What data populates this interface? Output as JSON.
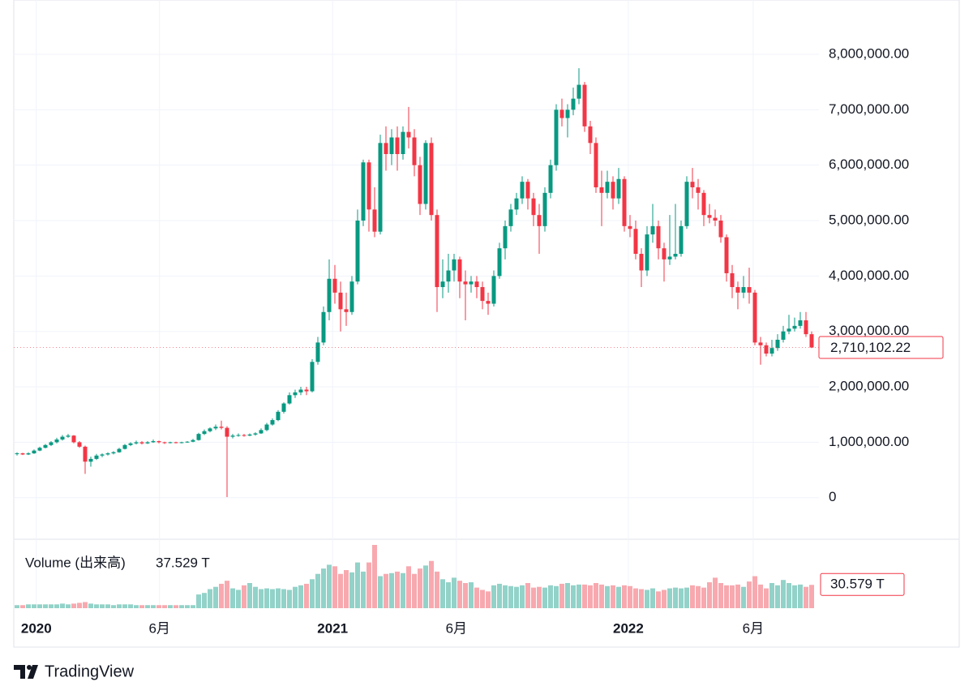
{
  "chart_data": {
    "type": "candlestick",
    "up_color": "#089981",
    "down_color": "#f23645",
    "volume_up_color": "#92d2c8",
    "volume_down_color": "#f7a9af",
    "ylim": [
      -750000,
      8980000
    ],
    "yticks": [
      0,
      {
        "value": 1000000,
        "label": "1,000,000.00"
      },
      {
        "value": 2000000,
        "label": "2,000,000.00"
      },
      {
        "value": 3000000,
        "label": "3,000,000.00"
      },
      {
        "value": 4000000,
        "label": "4,000,000.00"
      },
      {
        "value": 5000000,
        "label": "5,000,000.00"
      },
      {
        "value": 6000000,
        "label": "6,000,000.00"
      },
      {
        "value": 7000000,
        "label": "7,000,000.00"
      },
      {
        "value": 8000000,
        "label": "8,000,000.00"
      }
    ],
    "xticks": [
      {
        "value": 3.4,
        "label": "2020"
      },
      {
        "value": 25.1,
        "label": "6月"
      },
      {
        "value": 55.6,
        "label": "2021"
      },
      {
        "value": 77.4,
        "label": "6月"
      },
      {
        "value": 107.7,
        "label": "2022"
      },
      {
        "value": 129.7,
        "label": "6月"
      }
    ],
    "grid": true,
    "last_price": {
      "value": 2710102.22,
      "label": "2,710,102.22"
    },
    "ohlc": [
      [
        790000,
        820000,
        760000,
        800000
      ],
      [
        800000,
        810000,
        770000,
        780000
      ],
      [
        780000,
        820000,
        770000,
        800000
      ],
      [
        800000,
        870000,
        790000,
        850000
      ],
      [
        850000,
        920000,
        840000,
        900000
      ],
      [
        900000,
        970000,
        890000,
        950000
      ],
      [
        950000,
        1020000,
        930000,
        1000000
      ],
      [
        1000000,
        1080000,
        980000,
        1050000
      ],
      [
        1050000,
        1130000,
        1030000,
        1100000
      ],
      [
        1100000,
        1150000,
        1080000,
        1120000
      ],
      [
        1120000,
        1130000,
        980000,
        1000000
      ],
      [
        1000000,
        1020000,
        900000,
        920000
      ],
      [
        920000,
        940000,
        430000,
        650000
      ],
      [
        650000,
        740000,
        560000,
        700000
      ],
      [
        700000,
        790000,
        680000,
        760000
      ],
      [
        760000,
        800000,
        730000,
        780000
      ],
      [
        780000,
        820000,
        760000,
        800000
      ],
      [
        800000,
        840000,
        780000,
        820000
      ],
      [
        820000,
        900000,
        810000,
        880000
      ],
      [
        880000,
        970000,
        870000,
        950000
      ],
      [
        950000,
        1000000,
        930000,
        980000
      ],
      [
        980000,
        1030000,
        960000,
        1000000
      ],
      [
        1000000,
        1020000,
        960000,
        980000
      ],
      [
        980000,
        1020000,
        970000,
        1000000
      ],
      [
        1000000,
        1050000,
        990000,
        1020000
      ],
      [
        1020000,
        1030000,
        980000,
        1000000
      ],
      [
        1000000,
        1010000,
        970000,
        990000
      ],
      [
        990000,
        1010000,
        980000,
        1000000
      ],
      [
        1000000,
        1010000,
        980000,
        990000
      ],
      [
        990000,
        1010000,
        980000,
        1000000
      ],
      [
        1000000,
        1020000,
        990000,
        1010000
      ],
      [
        1010000,
        1060000,
        1000000,
        1040000
      ],
      [
        1040000,
        1170000,
        1030000,
        1150000
      ],
      [
        1150000,
        1230000,
        1130000,
        1200000
      ],
      [
        1200000,
        1270000,
        1180000,
        1250000
      ],
      [
        1250000,
        1320000,
        1220000,
        1280000
      ],
      [
        1280000,
        1390000,
        1230000,
        1260000
      ],
      [
        1260000,
        1290000,
        10000,
        1100000
      ],
      [
        1100000,
        1150000,
        1070000,
        1120000
      ],
      [
        1120000,
        1160000,
        1100000,
        1130000
      ],
      [
        1130000,
        1150000,
        1100000,
        1120000
      ],
      [
        1120000,
        1160000,
        1110000,
        1140000
      ],
      [
        1140000,
        1180000,
        1120000,
        1160000
      ],
      [
        1160000,
        1250000,
        1150000,
        1220000
      ],
      [
        1220000,
        1350000,
        1200000,
        1320000
      ],
      [
        1320000,
        1430000,
        1300000,
        1400000
      ],
      [
        1400000,
        1580000,
        1380000,
        1550000
      ],
      [
        1550000,
        1720000,
        1520000,
        1700000
      ],
      [
        1700000,
        1900000,
        1680000,
        1850000
      ],
      [
        1850000,
        1950000,
        1800000,
        1900000
      ],
      [
        1900000,
        2000000,
        1850000,
        1950000
      ],
      [
        1950000,
        2000000,
        1850000,
        1920000
      ],
      [
        1920000,
        2500000,
        1900000,
        2450000
      ],
      [
        2450000,
        2900000,
        2400000,
        2800000
      ],
      [
        2800000,
        3450000,
        2750000,
        3350000
      ],
      [
        3350000,
        4300000,
        3200000,
        3950000
      ],
      [
        3950000,
        4200000,
        3500000,
        3700000
      ],
      [
        3700000,
        3900000,
        3000000,
        3400000
      ],
      [
        3400000,
        3700000,
        3100000,
        3350000
      ],
      [
        3350000,
        4000000,
        3300000,
        3900000
      ],
      [
        3900000,
        5200000,
        3850000,
        5000000
      ],
      [
        5000000,
        6100000,
        4900000,
        6050000
      ],
      [
        6050000,
        6100000,
        4800000,
        5200000
      ],
      [
        5200000,
        5600000,
        4700000,
        4800000
      ],
      [
        4800000,
        6550000,
        4750000,
        6400000
      ],
      [
        6400000,
        6700000,
        5900000,
        6200000
      ],
      [
        6200000,
        6650000,
        6000000,
        6500000
      ],
      [
        6500000,
        6700000,
        5900000,
        6200000
      ],
      [
        6200000,
        6700000,
        6100000,
        6600000
      ],
      [
        6600000,
        7050000,
        6300000,
        6500000
      ],
      [
        6500000,
        6650000,
        5800000,
        6000000
      ],
      [
        6000000,
        6150000,
        5100000,
        5300000
      ],
      [
        5300000,
        6450000,
        5200000,
        6400000
      ],
      [
        6400000,
        6500000,
        5000000,
        5100000
      ],
      [
        5100000,
        5200000,
        3350000,
        3800000
      ],
      [
        3800000,
        4300000,
        3600000,
        3900000
      ],
      [
        3900000,
        4400000,
        3700000,
        4100000
      ],
      [
        4100000,
        4400000,
        3900000,
        4300000
      ],
      [
        4300000,
        4350000,
        3600000,
        3900000
      ],
      [
        3900000,
        4100000,
        3200000,
        3850000
      ],
      [
        3850000,
        4000000,
        3700000,
        3900000
      ],
      [
        3900000,
        4000000,
        3600000,
        3800000
      ],
      [
        3800000,
        3900000,
        3400000,
        3550000
      ],
      [
        3550000,
        3700000,
        3300000,
        3500000
      ],
      [
        3500000,
        4100000,
        3450000,
        4000000
      ],
      [
        4000000,
        4600000,
        3950000,
        4500000
      ],
      [
        4500000,
        5000000,
        4300000,
        4900000
      ],
      [
        4900000,
        5300000,
        4800000,
        5200000
      ],
      [
        5200000,
        5500000,
        5100000,
        5400000
      ],
      [
        5400000,
        5800000,
        5300000,
        5700000
      ],
      [
        5700000,
        5750000,
        5200000,
        5400000
      ],
      [
        5400000,
        5500000,
        4900000,
        5100000
      ],
      [
        5100000,
        5300000,
        4400000,
        4900000
      ],
      [
        4900000,
        5600000,
        4800000,
        5500000
      ],
      [
        5500000,
        6100000,
        5400000,
        6000000
      ],
      [
        6000000,
        7100000,
        5900000,
        7000000
      ],
      [
        7000000,
        7200000,
        6700000,
        6850000
      ],
      [
        6850000,
        7100000,
        6500000,
        7000000
      ],
      [
        7000000,
        7400000,
        6900000,
        7200000
      ],
      [
        7200000,
        7750000,
        7100000,
        7450000
      ],
      [
        7450000,
        7500000,
        6600000,
        6700000
      ],
      [
        6700000,
        6800000,
        6200000,
        6400000
      ],
      [
        6400000,
        6500000,
        5500000,
        5600000
      ],
      [
        5600000,
        5900000,
        4900000,
        5500000
      ],
      [
        5500000,
        5900000,
        5400000,
        5700000
      ],
      [
        5700000,
        5800000,
        5200000,
        5400000
      ],
      [
        5400000,
        5950000,
        5300000,
        5750000
      ],
      [
        5750000,
        5800000,
        4800000,
        4900000
      ],
      [
        4900000,
        5100000,
        4700000,
        4850000
      ],
      [
        4850000,
        5000000,
        4300000,
        4400000
      ],
      [
        4400000,
        4500000,
        3800000,
        4100000
      ],
      [
        4100000,
        4900000,
        4000000,
        4750000
      ],
      [
        4750000,
        5300000,
        4600000,
        4900000
      ],
      [
        4900000,
        5000000,
        4300000,
        4500000
      ],
      [
        4500000,
        4600000,
        3900000,
        4300000
      ],
      [
        4300000,
        5100000,
        4200000,
        4350000
      ],
      [
        4350000,
        5300000,
        4300000,
        4400000
      ],
      [
        4400000,
        5000000,
        4350000,
        4900000
      ],
      [
        4900000,
        5800000,
        4850000,
        5700000
      ],
      [
        5700000,
        5950000,
        5400000,
        5600000
      ],
      [
        5600000,
        5750000,
        5200000,
        5500000
      ],
      [
        5500000,
        5550000,
        4900000,
        5100000
      ],
      [
        5100000,
        5300000,
        4950000,
        5050000
      ],
      [
        5050000,
        5200000,
        4900000,
        5000000
      ],
      [
        5000000,
        5100000,
        4600000,
        4700000
      ],
      [
        4700000,
        4750000,
        3900000,
        4050000
      ],
      [
        4050000,
        4200000,
        3600000,
        3800000
      ],
      [
        3800000,
        3900000,
        3400000,
        3700000
      ],
      [
        3700000,
        4000000,
        3600000,
        3800000
      ],
      [
        3800000,
        4150000,
        3500000,
        3700000
      ],
      [
        3700000,
        3750000,
        2750000,
        2800000
      ],
      [
        2800000,
        2900000,
        2400000,
        2750000
      ],
      [
        2750000,
        2800000,
        2550000,
        2600000
      ],
      [
        2600000,
        2850000,
        2550000,
        2700000
      ],
      [
        2700000,
        2950000,
        2650000,
        2850000
      ],
      [
        2850000,
        3100000,
        2800000,
        3000000
      ],
      [
        3000000,
        3300000,
        2950000,
        3050000
      ],
      [
        3050000,
        3250000,
        3000000,
        3100000
      ],
      [
        3100000,
        3350000,
        3050000,
        3200000
      ],
      [
        3200000,
        3350000,
        2900000,
        2950000
      ],
      [
        2950000,
        3000000,
        2700000,
        2710102.22
      ]
    ],
    "volume": {
      "name": "Volume (出来高)",
      "legend_value": {
        "value": 37.529,
        "label": "37.529 T"
      },
      "last_value_label": "30.579 T",
      "values": [
        4,
        4,
        5,
        5,
        5,
        5,
        5,
        5,
        6,
        5,
        6,
        7,
        8,
        6,
        5,
        5,
        5,
        4,
        5,
        5,
        5,
        4,
        4,
        4,
        4,
        4,
        4,
        4,
        4,
        4,
        4,
        4,
        18,
        20,
        25,
        28,
        32,
        36,
        26,
        24,
        30,
        33,
        28,
        25,
        26,
        25,
        26,
        25,
        24,
        28,
        30,
        32,
        38,
        45,
        52,
        57,
        55,
        45,
        50,
        47,
        60,
        48,
        60,
        83,
        42,
        45,
        46,
        48,
        46,
        55,
        45,
        52,
        56,
        62,
        48,
        38,
        34,
        40,
        36,
        33,
        34,
        27,
        24,
        22,
        30,
        32,
        30,
        29,
        28,
        30,
        33,
        27,
        28,
        27,
        30,
        29,
        32,
        33,
        30,
        31,
        31,
        30,
        33,
        31,
        29,
        30,
        28,
        30,
        29,
        26,
        25,
        24,
        26,
        22,
        24,
        26,
        27,
        26,
        27,
        30,
        29,
        27,
        34,
        40,
        33,
        30,
        30,
        31,
        28,
        35,
        42,
        31,
        26,
        33,
        30,
        37,
        33,
        30,
        31,
        28,
        30.579
      ]
    }
  },
  "footer": {
    "brand": "TradingView"
  }
}
